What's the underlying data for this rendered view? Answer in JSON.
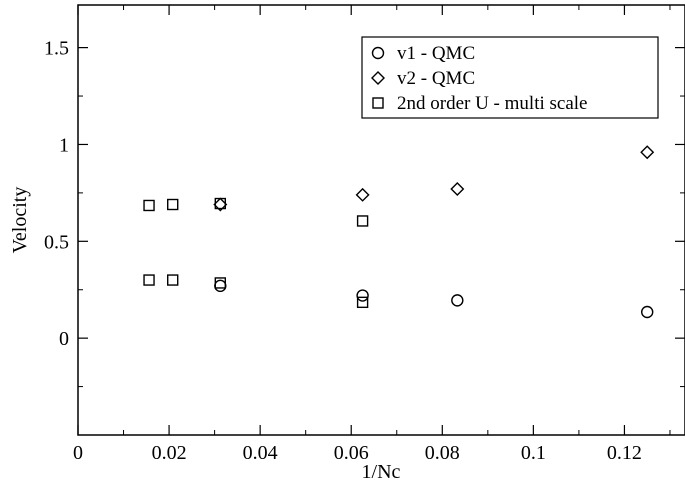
{
  "chart_data": {
    "type": "scatter",
    "title": "",
    "xlabel": "1/Nc",
    "ylabel": "Velocity",
    "xlim": [
      0,
      0.1333
    ],
    "ylim": [
      -0.5,
      1.72
    ],
    "x_ticks": [
      0,
      0.02,
      0.04,
      0.06,
      0.08,
      0.1,
      0.12
    ],
    "x_tick_labels": [
      "0",
      "0.02",
      "0.04",
      "0.06",
      "0.08",
      "0.1",
      "0.12"
    ],
    "y_ticks": [
      0,
      0.5,
      1,
      1.5
    ],
    "y_tick_labels": [
      "0",
      "0.5",
      "1",
      "1.5"
    ],
    "grid": false,
    "legend_position": "top-right",
    "series": [
      {
        "name": "v1 - QMC",
        "marker": "circle",
        "points": [
          [
            0.03125,
            0.27
          ],
          [
            0.0625,
            0.22
          ],
          [
            0.0833,
            0.195
          ],
          [
            0.125,
            0.135
          ]
        ]
      },
      {
        "name": "v2 - QMC",
        "marker": "diamond",
        "points": [
          [
            0.03125,
            0.69
          ],
          [
            0.0625,
            0.74
          ],
          [
            0.0833,
            0.77
          ],
          [
            0.125,
            0.96
          ]
        ]
      },
      {
        "name": "2nd order U - multi scale",
        "marker": "square",
        "points": [
          [
            0.0156,
            0.685
          ],
          [
            0.0208,
            0.69
          ],
          [
            0.03125,
            0.695
          ],
          [
            0.0625,
            0.605
          ],
          [
            0.0156,
            0.3
          ],
          [
            0.0208,
            0.3
          ],
          [
            0.03125,
            0.285
          ],
          [
            0.0625,
            0.185
          ]
        ]
      }
    ]
  }
}
